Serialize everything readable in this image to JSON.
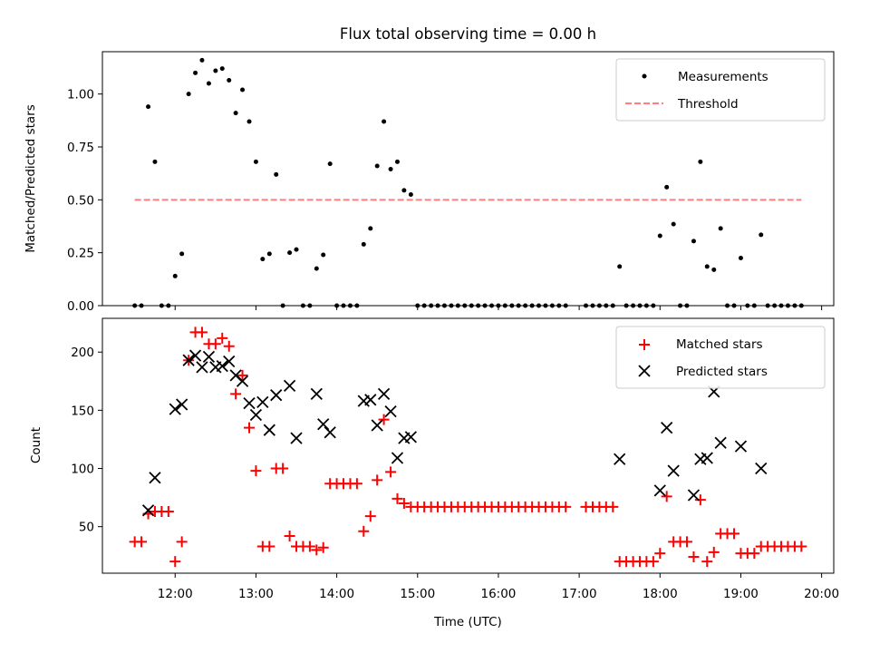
{
  "title": "Flux total observing time = 0.00 h",
  "colors": {
    "measurement": "#000000",
    "threshold": "#ff7f7f",
    "matched": "#ff0000",
    "predicted": "#000000"
  },
  "chart_data": [
    {
      "type": "scatter",
      "ylabel": "Matched/Predicted stars",
      "xlim": [
        11.1,
        20.15
      ],
      "ylim": [
        0,
        1.2
      ],
      "y_ticks": [
        0.0,
        0.25,
        0.5,
        0.75,
        1.0
      ],
      "y_tick_labels": [
        "0.00",
        "0.25",
        "0.50",
        "0.75",
        "1.00"
      ],
      "legend": {
        "position": "upper right",
        "entries": [
          "Measurements",
          "Threshold"
        ]
      },
      "threshold": {
        "name": "Threshold",
        "value": 0.5,
        "x_range": [
          11.5,
          19.75
        ],
        "style": "dashed"
      },
      "series": [
        {
          "name": "Measurements",
          "marker": "dot",
          "x": [
            11.5,
            11.583,
            11.667,
            11.75,
            11.833,
            11.917,
            12.0,
            12.083,
            12.167,
            12.25,
            12.333,
            12.417,
            12.5,
            12.583,
            12.667,
            12.75,
            12.833,
            12.917,
            13.0,
            13.083,
            13.167,
            13.25,
            13.333,
            13.417,
            13.5,
            13.583,
            13.667,
            13.75,
            13.833,
            13.917,
            14.0,
            14.083,
            14.167,
            14.25,
            14.333,
            14.417,
            14.5,
            14.583,
            14.667,
            14.75,
            14.833,
            14.917,
            15.0,
            15.083,
            15.167,
            15.25,
            15.333,
            15.417,
            15.5,
            15.583,
            15.667,
            15.75,
            15.833,
            15.917,
            16.0,
            16.083,
            16.167,
            16.25,
            16.333,
            16.417,
            16.5,
            16.583,
            16.667,
            16.75,
            16.833,
            17.083,
            17.167,
            17.25,
            17.333,
            17.417,
            17.5,
            17.583,
            17.667,
            17.75,
            17.833,
            17.917,
            18.0,
            18.083,
            18.167,
            18.25,
            18.333,
            18.417,
            18.5,
            18.583,
            18.667,
            18.75,
            18.833,
            18.917,
            19.0,
            19.083,
            19.167,
            19.25,
            19.333,
            19.417,
            19.5,
            19.583,
            19.667,
            19.75
          ],
          "y": [
            0.0,
            0.0,
            0.94,
            0.68,
            0.0,
            0.0,
            0.14,
            0.245,
            1.0,
            1.1,
            1.16,
            1.05,
            1.11,
            1.12,
            1.065,
            0.91,
            1.02,
            0.87,
            0.68,
            0.22,
            0.245,
            0.62,
            0.0,
            0.25,
            0.265,
            0.0,
            0.0,
            0.175,
            0.24,
            0.67,
            0.0,
            0.0,
            0.0,
            0.0,
            0.29,
            0.365,
            0.66,
            0.87,
            0.645,
            0.68,
            0.545,
            0.525,
            0.0,
            0.0,
            0.0,
            0.0,
            0.0,
            0.0,
            0.0,
            0.0,
            0.0,
            0.0,
            0.0,
            0.0,
            0.0,
            0.0,
            0.0,
            0.0,
            0.0,
            0.0,
            0.0,
            0.0,
            0.0,
            0.0,
            0.0,
            0.0,
            0.0,
            0.0,
            0.0,
            0.0,
            0.185,
            0.0,
            0.0,
            0.0,
            0.0,
            0.0,
            0.33,
            0.56,
            0.385,
            0.0,
            0.0,
            0.305,
            0.68,
            0.185,
            0.17,
            0.365,
            0.0,
            0.0,
            0.225,
            0.0,
            0.0,
            0.335,
            0.0,
            0.0,
            0.0,
            0.0,
            0.0,
            0.0
          ]
        }
      ]
    },
    {
      "type": "scatter",
      "xlabel": "Time (UTC)",
      "ylabel": "Count",
      "xlim": [
        11.1,
        20.15
      ],
      "ylim": [
        10,
        229
      ],
      "x_ticks": [
        12,
        13,
        14,
        15,
        16,
        17,
        18,
        19,
        20
      ],
      "x_tick_labels": [
        "12:00",
        "13:00",
        "14:00",
        "15:00",
        "16:00",
        "17:00",
        "18:00",
        "19:00",
        "20:00"
      ],
      "y_ticks": [
        50,
        100,
        150,
        200
      ],
      "y_tick_labels": [
        "50",
        "100",
        "150",
        "200"
      ],
      "legend": {
        "position": "upper right",
        "entries": [
          "Matched stars",
          "Predicted stars"
        ]
      },
      "series": [
        {
          "name": "Matched stars",
          "marker": "plus",
          "x": [
            11.5,
            11.583,
            11.667,
            11.75,
            11.833,
            11.917,
            12.0,
            12.083,
            12.167,
            12.25,
            12.333,
            12.417,
            12.5,
            12.583,
            12.667,
            12.75,
            12.833,
            12.917,
            13.0,
            13.083,
            13.167,
            13.25,
            13.333,
            13.417,
            13.5,
            13.583,
            13.667,
            13.75,
            13.833,
            13.917,
            14.0,
            14.083,
            14.167,
            14.25,
            14.333,
            14.417,
            14.5,
            14.583,
            14.667,
            14.75,
            14.833,
            14.917,
            15.0,
            15.083,
            15.167,
            15.25,
            15.333,
            15.417,
            15.5,
            15.583,
            15.667,
            15.75,
            15.833,
            15.917,
            16.0,
            16.083,
            16.167,
            16.25,
            16.333,
            16.417,
            16.5,
            16.583,
            16.667,
            16.75,
            16.833,
            17.083,
            17.167,
            17.25,
            17.333,
            17.417,
            17.5,
            17.583,
            17.667,
            17.75,
            17.833,
            17.917,
            18.0,
            18.083,
            18.167,
            18.25,
            18.333,
            18.417,
            18.5,
            18.583,
            18.667,
            18.75,
            18.833,
            18.917,
            19.0,
            19.083,
            19.167,
            19.25,
            19.333,
            19.417,
            19.5,
            19.583,
            19.667,
            19.75
          ],
          "y": [
            37,
            37,
            61,
            63,
            63,
            63,
            20,
            37,
            193,
            217,
            217,
            207,
            207,
            212,
            205,
            164,
            180,
            135,
            98,
            33,
            33,
            100,
            100,
            42,
            33,
            33,
            33,
            30,
            32,
            87,
            87,
            87,
            87,
            87,
            46,
            59,
            90,
            142,
            97,
            74,
            70,
            67,
            67,
            67,
            67,
            67,
            67,
            67,
            67,
            67,
            67,
            67,
            67,
            67,
            67,
            67,
            67,
            67,
            67,
            67,
            67,
            67,
            67,
            67,
            67,
            67,
            67,
            67,
            67,
            67,
            20,
            20,
            20,
            20,
            20,
            20,
            27,
            76,
            37,
            37,
            37,
            24,
            73,
            20,
            28,
            44,
            44,
            44,
            27,
            27,
            27,
            33,
            33,
            33,
            33,
            33,
            33,
            33
          ]
        },
        {
          "name": "Predicted stars",
          "marker": "x",
          "x": [
            11.667,
            11.75,
            12.0,
            12.083,
            12.167,
            12.25,
            12.333,
            12.417,
            12.5,
            12.583,
            12.667,
            12.75,
            12.833,
            12.917,
            13.0,
            13.083,
            13.167,
            13.25,
            13.417,
            13.5,
            13.75,
            13.833,
            13.917,
            14.333,
            14.417,
            14.5,
            14.583,
            14.667,
            14.75,
            14.833,
            14.917,
            17.5,
            18.0,
            18.083,
            18.167,
            18.417,
            18.5,
            18.583,
            18.667,
            18.75,
            19.0,
            19.25
          ],
          "y": [
            64,
            92,
            151,
            155,
            193,
            197,
            187,
            196,
            187,
            188,
            192,
            180,
            175,
            156,
            146,
            157,
            133,
            163,
            171,
            126,
            164,
            138,
            131,
            158,
            159,
            137,
            164,
            149,
            109,
            126,
            127,
            108,
            81,
            135,
            98,
            77,
            108,
            109,
            166,
            122,
            119,
            100
          ]
        }
      ]
    }
  ]
}
